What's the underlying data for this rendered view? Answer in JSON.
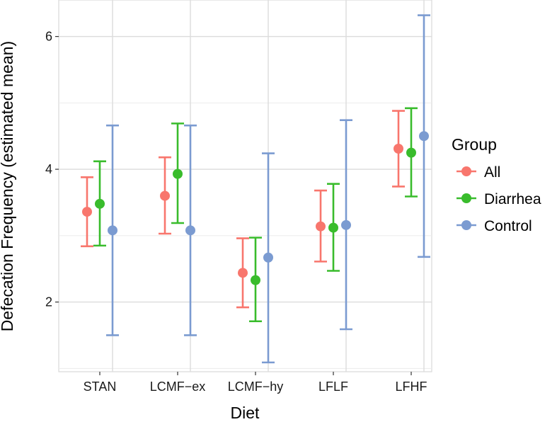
{
  "chart_data": {
    "type": "errorbar",
    "title": "",
    "xlabel": "Diet",
    "ylabel": "Defecation Frequency (estimated mean)",
    "categories": [
      "STAN",
      "LCMF−ex",
      "LCMF−hy",
      "LFLF",
      "LFHF"
    ],
    "ylim": [
      0.95,
      6.55
    ],
    "yticks": [
      2,
      4,
      6
    ],
    "grid": true,
    "legend": {
      "title": "Group",
      "position": "right"
    },
    "series": [
      {
        "name": "All",
        "color": "#F8766D",
        "values": [
          3.36,
          3.6,
          2.44,
          3.14,
          4.31
        ],
        "lower": [
          2.84,
          3.03,
          1.92,
          2.61,
          3.74
        ],
        "upper": [
          3.88,
          4.18,
          2.96,
          3.68,
          4.88
        ]
      },
      {
        "name": "Diarrhea",
        "color": "#39BC2C",
        "values": [
          3.48,
          3.93,
          2.33,
          3.12,
          4.25
        ],
        "lower": [
          2.85,
          3.19,
          1.71,
          2.47,
          3.59
        ],
        "upper": [
          4.12,
          4.69,
          2.97,
          3.78,
          4.92
        ]
      },
      {
        "name": "Control",
        "color": "#7B9BD1",
        "values": [
          3.08,
          3.08,
          2.67,
          3.16,
          4.5
        ],
        "lower": [
          1.5,
          1.5,
          1.09,
          1.59,
          2.68
        ],
        "upper": [
          4.66,
          4.66,
          4.24,
          4.74,
          6.32
        ]
      }
    ]
  }
}
